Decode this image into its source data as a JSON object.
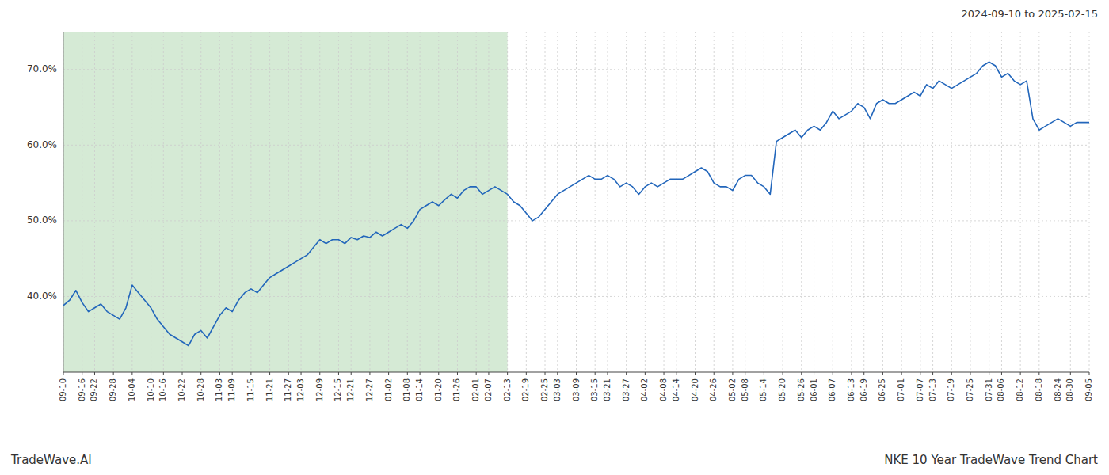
{
  "chart_data": {
    "type": "line",
    "title": "NKE 10 Year TradeWave Trend Chart",
    "subtitle": "2024-09-10 to 2025-02-15",
    "annotations": [
      "TradeWave.AI"
    ],
    "color": "#2266bb",
    "grid": true,
    "ylim": [
      30,
      75
    ],
    "yticks": [
      {
        "value": 40.0,
        "label": "40.0%"
      },
      {
        "value": 50.0,
        "label": "50.0%"
      },
      {
        "value": 60.0,
        "label": "60.0%"
      },
      {
        "value": 70.0,
        "label": "70.0%"
      }
    ],
    "shaded_range": {
      "from": "09-10",
      "to": "02-13",
      "color": "#d5ead5"
    },
    "categories": [
      "09-10",
      null,
      null,
      "09-16",
      null,
      "09-22",
      null,
      null,
      "09-28",
      null,
      null,
      "10-04",
      null,
      null,
      "10-10",
      null,
      "10-16",
      null,
      null,
      "10-22",
      null,
      null,
      "10-28",
      null,
      null,
      "11-03",
      null,
      "11-09",
      null,
      null,
      "11-15",
      null,
      null,
      "11-21",
      null,
      null,
      "11-27",
      null,
      "12-03",
      null,
      null,
      "12-09",
      null,
      null,
      "12-15",
      null,
      "12-21",
      null,
      null,
      "12-27",
      null,
      null,
      "01-02",
      null,
      null,
      "01-08",
      null,
      "01-14",
      null,
      null,
      "01-20",
      null,
      null,
      "01-26",
      null,
      null,
      "02-01",
      null,
      "02-07",
      null,
      null,
      "02-13",
      null,
      null,
      "02-19",
      null,
      null,
      "02-25",
      null,
      "03-03",
      null,
      null,
      "03-09",
      null,
      null,
      "03-15",
      null,
      "03-21",
      null,
      null,
      "03-27",
      null,
      null,
      "04-02",
      null,
      null,
      "04-08",
      null,
      "04-14",
      null,
      null,
      "04-20",
      null,
      null,
      "04-26",
      null,
      null,
      "05-02",
      null,
      "05-08",
      null,
      null,
      "05-14",
      null,
      null,
      "05-20",
      null,
      null,
      "05-26",
      null,
      "06-01",
      null,
      null,
      "06-07",
      null,
      null,
      "06-13",
      null,
      "06-19",
      null,
      null,
      "06-25",
      null,
      null,
      "07-01",
      null,
      null,
      "07-07",
      null,
      "07-13",
      null,
      null,
      "07-19",
      null,
      null,
      "07-25",
      null,
      null,
      "07-31",
      null,
      "08-06",
      null,
      null,
      "08-12",
      null,
      null,
      "08-18",
      null,
      null,
      "08-24",
      null,
      "08-30",
      null,
      null,
      "09-05"
    ],
    "values": [
      38.8,
      39.5,
      40.8,
      39.2,
      38.0,
      38.5,
      39.0,
      38.0,
      37.5,
      37.0,
      38.5,
      41.5,
      40.5,
      39.5,
      38.5,
      37.0,
      36.0,
      35.0,
      34.5,
      34.0,
      33.5,
      35.0,
      35.5,
      34.5,
      36.0,
      37.5,
      38.5,
      38.0,
      39.5,
      40.5,
      41.0,
      40.5,
      41.5,
      42.5,
      43.0,
      43.5,
      44.0,
      44.5,
      45.0,
      45.5,
      46.5,
      47.5,
      47.0,
      47.5,
      47.5,
      47.0,
      47.8,
      47.5,
      48.0,
      47.8,
      48.5,
      48.0,
      48.5,
      49.0,
      49.5,
      49.0,
      50.0,
      51.5,
      52.0,
      52.5,
      52.0,
      52.8,
      53.5,
      53.0,
      54.0,
      54.5,
      54.5,
      53.5,
      54.0,
      54.5,
      54.0,
      53.5,
      52.5,
      52.0,
      51.0,
      50.0,
      50.5,
      51.5,
      52.5,
      53.5,
      54.0,
      54.5,
      55.0,
      55.5,
      56.0,
      55.5,
      55.5,
      56.0,
      55.5,
      54.5,
      55.0,
      54.5,
      53.5,
      54.5,
      55.0,
      54.5,
      55.0,
      55.5,
      55.5,
      55.5,
      56.0,
      56.5,
      57.0,
      56.5,
      55.0,
      54.5,
      54.5,
      54.0,
      55.5,
      56.0,
      56.0,
      55.0,
      54.5,
      53.5,
      60.5,
      61.0,
      61.5,
      62.0,
      61.0,
      62.0,
      62.5,
      62.0,
      63.0,
      64.5,
      63.5,
      64.0,
      64.5,
      65.5,
      65.0,
      63.5,
      65.5,
      66.0,
      65.5,
      65.5,
      66.0,
      66.5,
      67.0,
      66.5,
      68.0,
      67.5,
      68.5,
      68.0,
      67.5,
      68.0,
      68.5,
      69.0,
      69.5,
      70.5,
      71.0,
      70.5,
      69.0,
      69.5,
      68.5,
      68.0,
      68.5,
      63.5,
      62.0,
      62.5,
      63.0,
      63.5,
      63.0,
      62.5,
      63.0,
      63.0,
      63.0
    ]
  }
}
